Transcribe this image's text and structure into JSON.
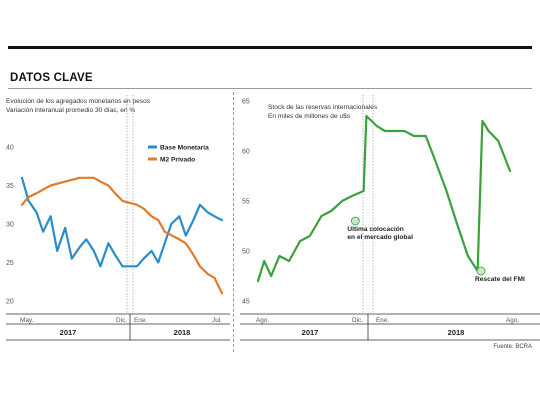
{
  "header": {
    "title": "DATOS CLAVE"
  },
  "footer": {
    "source": "Fuente: BCRA"
  },
  "colors": {
    "base_monetaria": "#2b8ccb",
    "m2_privado": "#e07b2a",
    "reservas": "#3aa13c",
    "annotation_dot": "#c7e8c8"
  },
  "chart_data": [
    {
      "type": "line",
      "title": "Evolución de los agregados monetarios en pesos",
      "subtitle": "Variación interanual promedio 30 días, en %",
      "ylim": [
        20,
        40
      ],
      "yticks": [
        20,
        25,
        30,
        35,
        40
      ],
      "xticks": [
        "May.",
        "Dic.",
        "Ene.",
        "Jul."
      ],
      "year_labels": [
        "2017",
        "2018"
      ],
      "x_range": [
        "2017-05",
        "2018-07"
      ],
      "legend_position": "top-right",
      "series": [
        {
          "name": "Base Monetaria",
          "color": "#2b8ccb",
          "points": [
            [
              "2017-05",
              36.0
            ],
            [
              "2017-05-15",
              33.0
            ],
            [
              "2017-06",
              31.5
            ],
            [
              "2017-06-15",
              29.0
            ],
            [
              "2017-07",
              31.0
            ],
            [
              "2017-07-15",
              26.5
            ],
            [
              "2017-08",
              29.5
            ],
            [
              "2017-08-15",
              25.5
            ],
            [
              "2017-09",
              27.0
            ],
            [
              "2017-09-15",
              28.0
            ],
            [
              "2017-10",
              26.5
            ],
            [
              "2017-10-15",
              24.5
            ],
            [
              "2017-11",
              27.5
            ],
            [
              "2017-11-15",
              26.0
            ],
            [
              "2017-12",
              24.5
            ],
            [
              "2018-01",
              24.5
            ],
            [
              "2018-01-15",
              25.5
            ],
            [
              "2018-02",
              26.5
            ],
            [
              "2018-02-15",
              25.0
            ],
            [
              "2018-03",
              27.5
            ],
            [
              "2018-03-15",
              30.0
            ],
            [
              "2018-04",
              31.0
            ],
            [
              "2018-04-15",
              28.5
            ],
            [
              "2018-05",
              30.5
            ],
            [
              "2018-05-15",
              32.5
            ],
            [
              "2018-06",
              31.5
            ],
            [
              "2018-06-15",
              31.0
            ],
            [
              "2018-07",
              30.5
            ]
          ]
        },
        {
          "name": "M2 Privado",
          "color": "#e07b2a",
          "points": [
            [
              "2017-05",
              32.5
            ],
            [
              "2017-05-15",
              33.5
            ],
            [
              "2017-06",
              34.0
            ],
            [
              "2017-07",
              35.0
            ],
            [
              "2017-08",
              35.5
            ],
            [
              "2017-09",
              36.0
            ],
            [
              "2017-10",
              36.0
            ],
            [
              "2017-10-15",
              35.5
            ],
            [
              "2017-11",
              35.0
            ],
            [
              "2017-11-15",
              34.0
            ],
            [
              "2017-12",
              33.0
            ],
            [
              "2018-01",
              32.5
            ],
            [
              "2018-01-15",
              32.0
            ],
            [
              "2018-02",
              31.0
            ],
            [
              "2018-02-15",
              30.5
            ],
            [
              "2018-03",
              29.0
            ],
            [
              "2018-04",
              28.0
            ],
            [
              "2018-04-15",
              27.5
            ],
            [
              "2018-05",
              26.0
            ],
            [
              "2018-05-15",
              24.5
            ],
            [
              "2018-06",
              23.5
            ],
            [
              "2018-06-15",
              23.0
            ],
            [
              "2018-07",
              21.0
            ]
          ]
        }
      ]
    },
    {
      "type": "line",
      "title": "Stock de las reservas internacionales",
      "subtitle": "En miles de millones de u$s",
      "ylim": [
        45,
        65
      ],
      "yticks": [
        45,
        50,
        55,
        60,
        65
      ],
      "xticks": [
        "Ago.",
        "Dic.",
        "Ene.",
        "Ago."
      ],
      "year_labels": [
        "2017",
        "2018"
      ],
      "x_range": [
        "2017-08",
        "2018-08"
      ],
      "series": [
        {
          "name": "Reservas",
          "color": "#3aa13c",
          "points": [
            [
              "2017-08",
              47.0
            ],
            [
              "2017-08-10",
              49.0
            ],
            [
              "2017-08-20",
              47.5
            ],
            [
              "2017-09",
              49.5
            ],
            [
              "2017-09-15",
              49.0
            ],
            [
              "2017-10",
              51.0
            ],
            [
              "2017-10-15",
              51.5
            ],
            [
              "2017-11",
              53.5
            ],
            [
              "2017-11-15",
              54.0
            ],
            [
              "2017-12",
              55.0
            ],
            [
              "2017-12-15",
              55.5
            ],
            [
              "2018-01",
              56.0
            ],
            [
              "2018-01-05",
              63.5
            ],
            [
              "2018-01-20",
              62.5
            ],
            [
              "2018-02",
              62.0
            ],
            [
              "2018-03",
              62.0
            ],
            [
              "2018-03-15",
              61.5
            ],
            [
              "2018-04",
              61.5
            ],
            [
              "2018-04-15",
              59.0
            ],
            [
              "2018-05",
              56.0
            ],
            [
              "2018-05-15",
              53.0
            ],
            [
              "2018-06",
              49.5
            ],
            [
              "2018-06-15",
              48.0
            ],
            [
              "2018-06-22",
              63.0
            ],
            [
              "2018-07",
              62.0
            ],
            [
              "2018-07-15",
              61.0
            ],
            [
              "2018-08",
              58.0
            ]
          ]
        }
      ],
      "annotations": [
        {
          "label_lines": [
            "Ultima colocación",
            "en el mercado global"
          ],
          "x": "2017-12-20",
          "y": 53.0
        },
        {
          "label_lines": [
            "Rescate del FMI"
          ],
          "x": "2018-06-20",
          "y": 48.0
        }
      ]
    }
  ]
}
